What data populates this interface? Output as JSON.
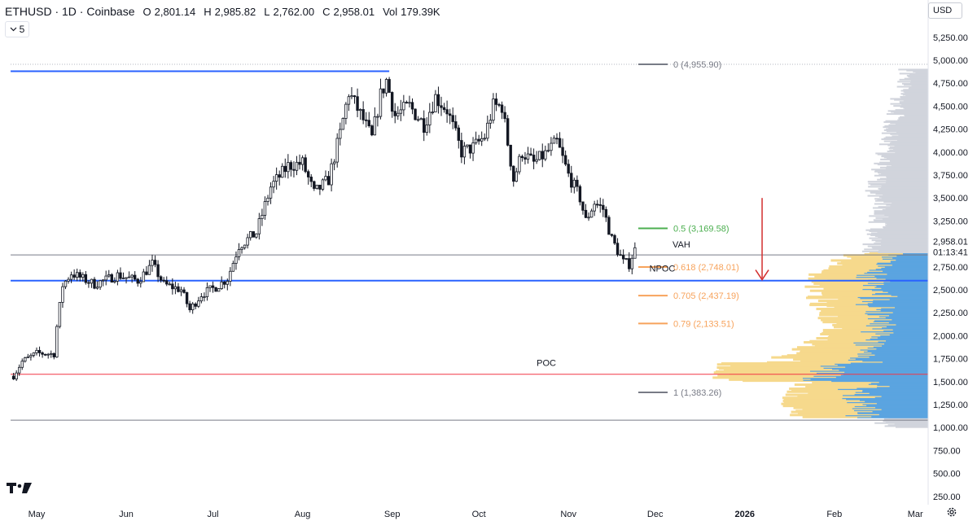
{
  "header": {
    "symbol": "ETHUSD · 1D · Coinbase",
    "open_label": "O",
    "open": "2,801.14",
    "high_label": "H",
    "high": "2,985.82",
    "low_label": "L",
    "low": "2,762.00",
    "close_label": "C",
    "close": "2,958.01",
    "vol_label": "Vol",
    "vol": "179.39K"
  },
  "indicator_toggle": {
    "chevron": "chevron-down-icon",
    "count": "5"
  },
  "currency": "USD",
  "colors": {
    "bull": "#ffffff",
    "bear": "#131722",
    "candle_edge": "#131722",
    "blue_line": "#2962ff",
    "gray_line": "#787b86",
    "poc_line": "#f23645",
    "vp_up": "#5ba4e0",
    "vp_down": "#f6d98c",
    "vp_gray": "#d1d4dc",
    "fib_0": "#787b86",
    "fib_05": "#4caf50",
    "fib_0618": "#f7a35c",
    "fib_0705": "#f7a35c",
    "fib_079": "#f7a35c",
    "fib_1": "#787b86",
    "arrow": "#d32f2f"
  },
  "chart_data": {
    "type": "candlestick",
    "title": "",
    "y_axis_ticks": [
      "5,250.00",
      "5,000.00",
      "4,750.00",
      "4,500.00",
      "4,250.00",
      "4,000.00",
      "3,750.00",
      "3,500.00",
      "3,250.00",
      "2,750.00",
      "2,500.00",
      "2,250.00",
      "2,000.00",
      "1,750.00",
      "1,500.00",
      "1,250.00",
      "1,000.00",
      "750.00",
      "500.00",
      "250.00"
    ],
    "x_axis_ticks": [
      {
        "label": "May",
        "day": 0
      },
      {
        "label": "Jun",
        "day": 31
      },
      {
        "label": "Jul",
        "day": 61
      },
      {
        "label": "Aug",
        "day": 92
      },
      {
        "label": "Sep",
        "day": 123
      },
      {
        "label": "Oct",
        "day": 153
      },
      {
        "label": "Nov",
        "day": 184
      },
      {
        "label": "Dec",
        "day": 214
      },
      {
        "label": "2026",
        "day": 245
      },
      {
        "label": "Feb",
        "day": 276
      },
      {
        "label": "Mar",
        "day": 304
      }
    ],
    "last_price": "2,958.01",
    "countdown": "01:13:41",
    "anchors": [
      {
        "day": -8,
        "price": 1560
      },
      {
        "day": -5,
        "price": 1720
      },
      {
        "day": 0,
        "price": 1810
      },
      {
        "day": 6,
        "price": 1800
      },
      {
        "day": 7,
        "price": 2100
      },
      {
        "day": 9,
        "price": 2550
      },
      {
        "day": 12,
        "price": 2680
      },
      {
        "day": 20,
        "price": 2560
      },
      {
        "day": 28,
        "price": 2660
      },
      {
        "day": 35,
        "price": 2600
      },
      {
        "day": 40,
        "price": 2780
      },
      {
        "day": 44,
        "price": 2560
      },
      {
        "day": 50,
        "price": 2500
      },
      {
        "day": 53,
        "price": 2280
      },
      {
        "day": 57,
        "price": 2450
      },
      {
        "day": 62,
        "price": 2530
      },
      {
        "day": 66,
        "price": 2620
      },
      {
        "day": 70,
        "price": 2980
      },
      {
        "day": 76,
        "price": 3120
      },
      {
        "day": 81,
        "price": 3620
      },
      {
        "day": 87,
        "price": 3850
      },
      {
        "day": 92,
        "price": 3880
      },
      {
        "day": 96,
        "price": 3550
      },
      {
        "day": 101,
        "price": 3700
      },
      {
        "day": 105,
        "price": 4200
      },
      {
        "day": 108,
        "price": 4650
      },
      {
        "day": 113,
        "price": 4350
      },
      {
        "day": 116,
        "price": 4150
      },
      {
        "day": 119,
        "price": 4620
      },
      {
        "day": 121,
        "price": 4780
      },
      {
        "day": 124,
        "price": 4400
      },
      {
        "day": 129,
        "price": 4500
      },
      {
        "day": 134,
        "price": 4300
      },
      {
        "day": 138,
        "price": 4600
      },
      {
        "day": 142,
        "price": 4460
      },
      {
        "day": 147,
        "price": 4000
      },
      {
        "day": 151,
        "price": 4050
      },
      {
        "day": 155,
        "price": 4170
      },
      {
        "day": 158,
        "price": 4500
      },
      {
        "day": 161,
        "price": 4500
      },
      {
        "day": 165,
        "price": 3700
      },
      {
        "day": 168,
        "price": 4000
      },
      {
        "day": 172,
        "price": 3880
      },
      {
        "day": 176,
        "price": 3980
      },
      {
        "day": 180,
        "price": 4110
      },
      {
        "day": 184,
        "price": 3750
      },
      {
        "day": 188,
        "price": 3500
      },
      {
        "day": 190,
        "price": 3250
      },
      {
        "day": 193,
        "price": 3450
      },
      {
        "day": 196,
        "price": 3380
      },
      {
        "day": 199,
        "price": 3050
      },
      {
        "day": 203,
        "price": 2800
      },
      {
        "day": 205,
        "price": 2780
      },
      {
        "day": 207,
        "price": 2958
      }
    ],
    "horizontal_lines": [
      {
        "kind": "blue",
        "price": 4880,
        "from_day": -9,
        "to_day": 122
      },
      {
        "kind": "blue",
        "price": 2600,
        "from_day": -9,
        "to_day": 314
      },
      {
        "kind": "gray",
        "price": 2880,
        "from_day": -9,
        "to_day": 314
      },
      {
        "kind": "gray",
        "price": 1080,
        "from_day": -9,
        "to_day": 314
      },
      {
        "kind": "poc",
        "price": 1580,
        "from_day": -9,
        "to_day": 314
      },
      {
        "kind": "dotted",
        "price": 4955.9,
        "from_day": -9,
        "to_day": 314
      }
    ],
    "fib_levels": [
      {
        "level": "0",
        "price": 4955.9,
        "label": "0 (4,955.90)",
        "color_key": "fib_0"
      },
      {
        "level": "0.5",
        "price": 3169.58,
        "label": "0.5 (3,169.58)",
        "color_key": "fib_05"
      },
      {
        "level": "0.618",
        "price": 2748.01,
        "label": "0.618 (2,748.01)",
        "color_key": "fib_0618"
      },
      {
        "level": "0.705",
        "price": 2437.19,
        "label": "0.705 (2,437.19)",
        "color_key": "fib_0705"
      },
      {
        "level": "0.79",
        "price": 2133.51,
        "label": "0.79 (2,133.51)",
        "color_key": "fib_079"
      },
      {
        "level": "1",
        "price": 1383.26,
        "label": "1 (1,383.26)",
        "color_key": "fib_1"
      }
    ],
    "annotations": [
      {
        "text": "VAH",
        "day": 220,
        "price": 2960
      },
      {
        "text": "NPOC",
        "day": 212,
        "price": 2700
      },
      {
        "text": "POC",
        "day": 173,
        "price": 1670
      }
    ],
    "arrow": {
      "from_price": 3500,
      "to_price": 2610,
      "day": 251
    }
  }
}
